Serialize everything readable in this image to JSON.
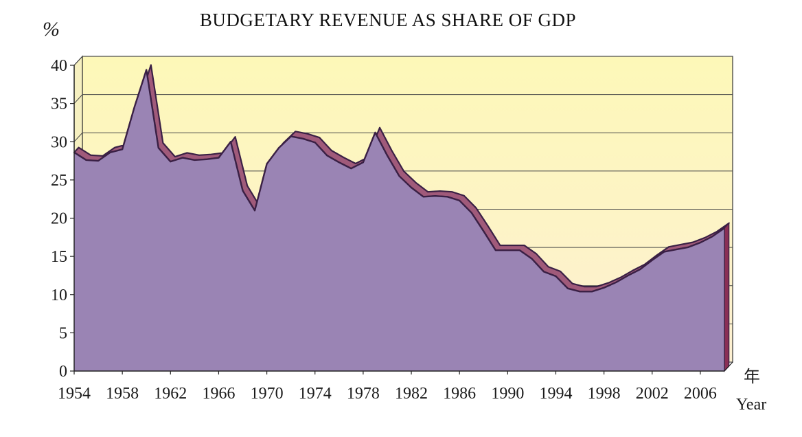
{
  "chart_data": {
    "type": "area",
    "title": "BUDGETARY REVENUE AS SHARE OF GDP",
    "ylabel": "%",
    "xlabel_cn": "年",
    "xlabel": "Year",
    "xlim": [
      1954,
      2008
    ],
    "ylim": [
      0,
      40
    ],
    "yticks": [
      "0",
      "5",
      "10",
      "15",
      "20",
      "25",
      "30",
      "35",
      "40"
    ],
    "xticks": [
      "1954",
      "1958",
      "1962",
      "1966",
      "1970",
      "1974",
      "1978",
      "1982",
      "1986",
      "1990",
      "1994",
      "1998",
      "2002",
      "2006"
    ],
    "grid": true,
    "colors": {
      "plot_background": "#fdf9c4",
      "area_fill": "#9a84b4",
      "area_edge_dark": "#3a2045",
      "area_edge_highlight": "#a05a7a",
      "gridline": "#4a4a4a"
    },
    "x": [
      1954,
      1955,
      1956,
      1957,
      1958,
      1959,
      1960,
      1961,
      1962,
      1963,
      1964,
      1965,
      1966,
      1967,
      1968,
      1969,
      1970,
      1971,
      1972,
      1973,
      1974,
      1975,
      1976,
      1977,
      1978,
      1979,
      1980,
      1981,
      1982,
      1983,
      1984,
      1985,
      1986,
      1987,
      1988,
      1989,
      1990,
      1991,
      1992,
      1993,
      1994,
      1995,
      1996,
      1997,
      1998,
      1999,
      2000,
      2001,
      2002,
      2003,
      2004,
      2005,
      2006,
      2007,
      2008
    ],
    "values": [
      28.6,
      27.6,
      27.5,
      28.6,
      29.0,
      34.5,
      39.4,
      29.2,
      27.4,
      27.9,
      27.6,
      27.7,
      27.9,
      30.0,
      23.6,
      21.0,
      27.1,
      29.2,
      30.7,
      30.4,
      29.9,
      28.2,
      27.3,
      26.5,
      27.3,
      31.2,
      28.2,
      25.5,
      24.0,
      22.8,
      22.9,
      22.8,
      22.3,
      20.7,
      18.3,
      15.8,
      15.8,
      15.8,
      14.7,
      13.0,
      12.4,
      10.8,
      10.4,
      10.4,
      10.9,
      11.6,
      12.5,
      13.3,
      14.5,
      15.6,
      15.9,
      16.2,
      16.8,
      17.6,
      18.7
    ]
  }
}
